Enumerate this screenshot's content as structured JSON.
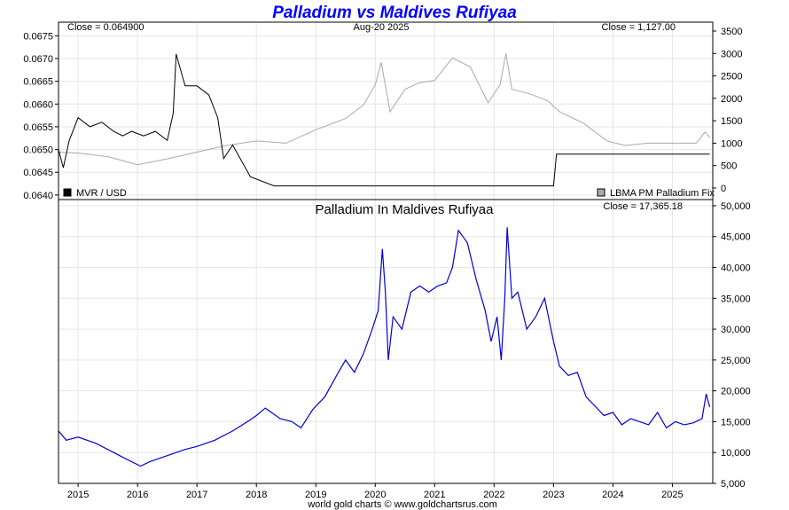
{
  "chart_data": [
    {
      "type": "line",
      "panel": "top",
      "title": "Palladium vs Maldives Rufiyaa",
      "title_color": "#0000ff",
      "date_label": "Aug-20 2025",
      "close_left": "Close = 0.064900",
      "close_right": "Close = 1,127.00",
      "left_axis": {
        "ticks": [
          "0.0640",
          "0.0645",
          "0.0650",
          "0.0655",
          "0.0660",
          "0.0665",
          "0.0670",
          "0.0675"
        ],
        "ylim": [
          0.0639,
          0.0678
        ]
      },
      "right_axis": {
        "ticks": [
          "0",
          "500",
          "1000",
          "1500",
          "2000",
          "2500",
          "3000",
          "3500"
        ],
        "ylim": [
          0,
          3500
        ]
      },
      "legend": [
        {
          "name": "MVR / USD",
          "color": "#000000",
          "position": "bottom-left"
        },
        {
          "name": "LBMA PM Palladium Fix",
          "color": "#aaaaaa",
          "position": "bottom-right"
        }
      ],
      "series": [
        {
          "name": "MVR / USD",
          "color": "#000000",
          "axis": "left",
          "x": [
            2014.67,
            2014.75,
            2014.85,
            2015.0,
            2015.2,
            2015.4,
            2015.6,
            2015.75,
            2015.9,
            2016.1,
            2016.3,
            2016.5,
            2016.6,
            2016.65,
            2016.8,
            2017.0,
            2017.2,
            2017.35,
            2017.45,
            2017.6,
            2017.9,
            2018.3,
            2018.8,
            2019.3,
            2019.8,
            2020.2,
            2020.6,
            2021.0,
            2021.4,
            2021.8,
            2022.2,
            2022.6,
            2023.0,
            2023.05,
            2023.5,
            2024.0,
            2024.5,
            2025.0,
            2025.5,
            2025.63
          ],
          "values": [
            0.065,
            0.0646,
            0.0652,
            0.0657,
            0.0655,
            0.0656,
            0.0654,
            0.0653,
            0.0654,
            0.0653,
            0.0654,
            0.0652,
            0.0658,
            0.0671,
            0.0664,
            0.0664,
            0.0662,
            0.0657,
            0.0648,
            0.0651,
            0.0644,
            0.0642,
            0.0642,
            0.0642,
            0.0642,
            0.0642,
            0.0642,
            0.0642,
            0.0642,
            0.0642,
            0.0642,
            0.0642,
            0.0642,
            0.0649,
            0.0649,
            0.0649,
            0.0649,
            0.0649,
            0.0649,
            0.0649
          ]
        },
        {
          "name": "LBMA PM Palladium Fix",
          "color": "#aaaaaa",
          "axis": "right",
          "x": [
            2014.67,
            2015.0,
            2015.5,
            2016.0,
            2016.5,
            2017.0,
            2017.5,
            2018.0,
            2018.5,
            2019.0,
            2019.5,
            2019.8,
            2020.0,
            2020.1,
            2020.25,
            2020.5,
            2020.75,
            2021.0,
            2021.3,
            2021.6,
            2021.9,
            2022.1,
            2022.2,
            2022.3,
            2022.6,
            2022.9,
            2023.1,
            2023.5,
            2023.9,
            2024.2,
            2024.6,
            2025.0,
            2025.4,
            2025.55,
            2025.63
          ],
          "values": [
            800,
            780,
            700,
            520,
            650,
            800,
            950,
            1050,
            1000,
            1300,
            1550,
            1850,
            2300,
            2800,
            1700,
            2200,
            2350,
            2400,
            2900,
            2700,
            1900,
            2300,
            3000,
            2200,
            2100,
            1950,
            1700,
            1450,
            1050,
            950,
            1000,
            1000,
            1000,
            1250,
            1127
          ]
        }
      ]
    },
    {
      "type": "line",
      "panel": "bottom",
      "title": "Palladium In Maldives Rufiyaa",
      "close": "Close = 17,365.18",
      "footer": "world gold charts © www.goldchartsrus.com",
      "ylim": [
        5000,
        51000
      ],
      "y_ticks": [
        "5,000",
        "10,000",
        "15,000",
        "20,000",
        "25,000",
        "30,000",
        "35,000",
        "40,000",
        "45,000",
        "50,000"
      ],
      "x_ticks": [
        "2015",
        "2016",
        "2017",
        "2018",
        "2019",
        "2020",
        "2021",
        "2022",
        "2023",
        "2024",
        "2025"
      ],
      "xlim": [
        2014.67,
        2025.68
      ],
      "series": [
        {
          "name": "Palladium In Maldives Rufiyaa",
          "color": "#0000dd",
          "x": [
            2014.67,
            2014.8,
            2015.0,
            2015.3,
            2015.6,
            2015.8,
            2016.05,
            2016.2,
            2016.5,
            2016.8,
            2017.0,
            2017.3,
            2017.6,
            2017.85,
            2018.0,
            2018.15,
            2018.4,
            2018.6,
            2018.75,
            2018.95,
            2019.15,
            2019.35,
            2019.5,
            2019.65,
            2019.8,
            2019.95,
            2020.05,
            2020.12,
            2020.17,
            2020.22,
            2020.3,
            2020.45,
            2020.6,
            2020.75,
            2020.9,
            2021.05,
            2021.2,
            2021.3,
            2021.4,
            2021.55,
            2021.7,
            2021.85,
            2021.95,
            2022.05,
            2022.12,
            2022.18,
            2022.22,
            2022.3,
            2022.4,
            2022.55,
            2022.7,
            2022.85,
            2023.0,
            2023.1,
            2023.25,
            2023.4,
            2023.55,
            2023.7,
            2023.85,
            2024.0,
            2024.15,
            2024.3,
            2024.45,
            2024.6,
            2024.75,
            2024.9,
            2025.05,
            2025.2,
            2025.35,
            2025.5,
            2025.57,
            2025.63
          ],
          "values": [
            13500,
            12000,
            12500,
            11500,
            10000,
            9000,
            7800,
            8500,
            9500,
            10500,
            11000,
            12000,
            13500,
            15000,
            16000,
            17200,
            15500,
            15000,
            14000,
            17000,
            19000,
            22500,
            25000,
            23000,
            26000,
            30000,
            33000,
            43000,
            36000,
            25000,
            32000,
            30000,
            36000,
            37000,
            36000,
            37000,
            37500,
            40000,
            46000,
            44000,
            38000,
            33000,
            28000,
            32000,
            25000,
            35000,
            46500,
            35000,
            36000,
            30000,
            32000,
            35000,
            28000,
            24000,
            22500,
            23000,
            19000,
            17500,
            16000,
            16500,
            14500,
            15500,
            15000,
            14500,
            16500,
            14000,
            15000,
            14500,
            14800,
            15500,
            19500,
            17365
          ]
        }
      ]
    }
  ]
}
